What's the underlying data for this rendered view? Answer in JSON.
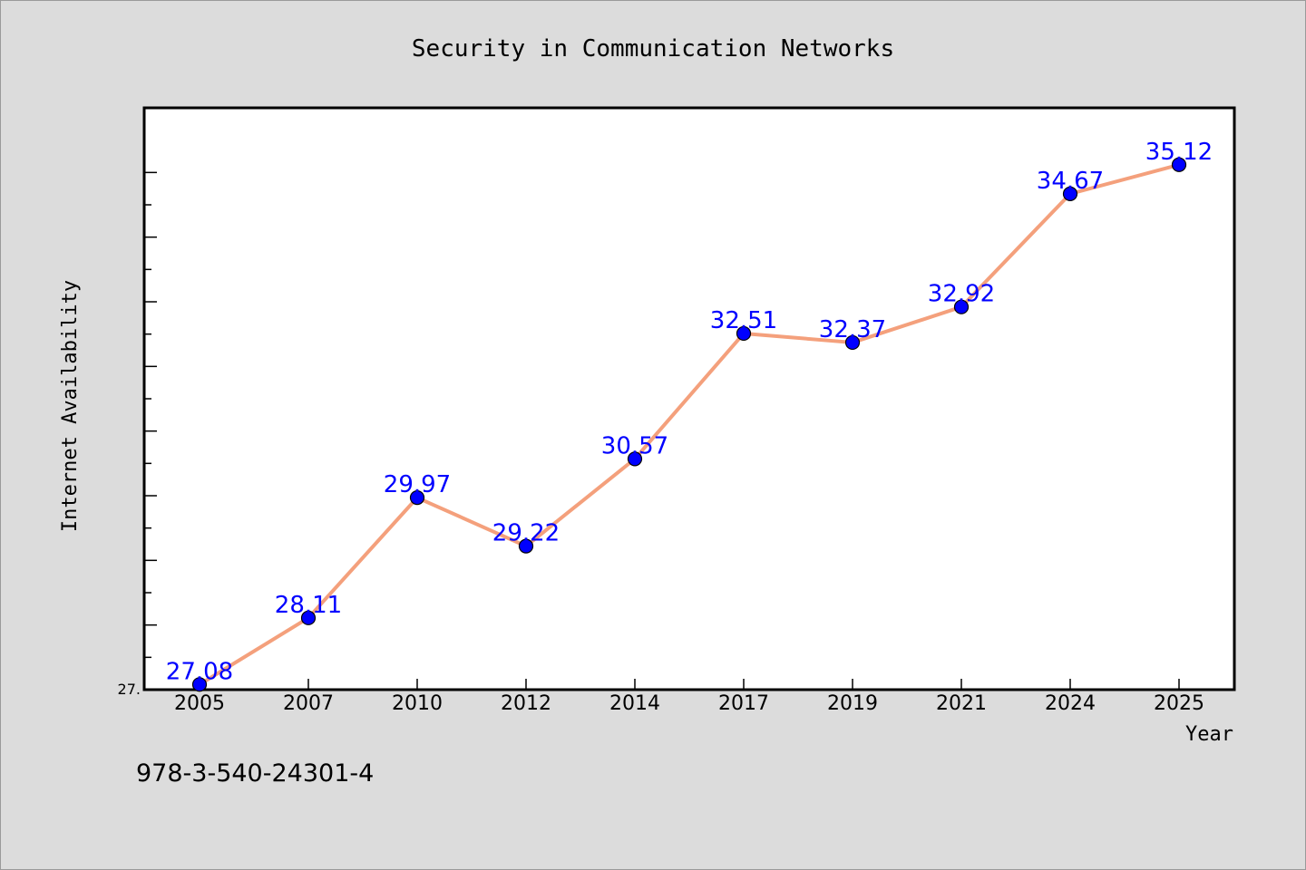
{
  "chart_data": {
    "type": "line",
    "title": "Security in Communication Networks",
    "xlabel": "Year",
    "ylabel": "Internet Availability",
    "categories": [
      "2005",
      "2007",
      "2010",
      "2012",
      "2014",
      "2017",
      "2019",
      "2021",
      "2024",
      "2025"
    ],
    "series": [
      {
        "values": [
          27.08,
          28.11,
          29.97,
          29.22,
          30.57,
          32.51,
          32.37,
          32.92,
          34.67,
          35.12
        ],
        "data_labels": [
          "27.08",
          "28.11",
          "29.97",
          "29.22",
          "30.57",
          "32.51",
          "32.37",
          "32.92",
          "34.67",
          "35.12"
        ]
      }
    ],
    "ylim": [
      27.0,
      36.0
    ],
    "y_tick_labels": [
      "27."
    ],
    "grid": false,
    "legend": "none",
    "colors": {
      "line": "#f4a07c",
      "marker": "#0000ff",
      "data_label": "#0000ff",
      "background": "#dcdcdc",
      "plot_area": "#ffffff"
    }
  },
  "footer": {
    "isbn": "978-3-540-24301-4"
  }
}
